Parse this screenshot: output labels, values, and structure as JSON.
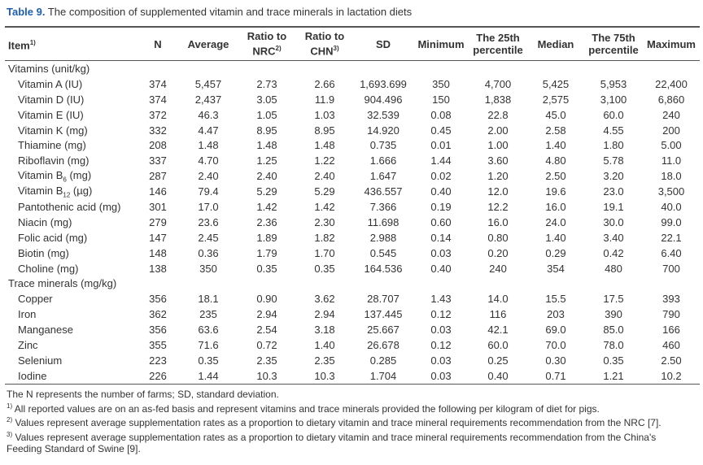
{
  "title": {
    "label": "Table 9.",
    "text": " The composition of supplemented vitamin and trace minerals in lactation diets"
  },
  "table": {
    "header": [
      {
        "text": "Item",
        "sup": "1)"
      },
      {
        "text": "N"
      },
      {
        "text": "Average"
      },
      {
        "text": "Ratio to NRC",
        "sup": "2)"
      },
      {
        "text": "Ratio to CHN",
        "sup": "3)"
      },
      {
        "text": "SD"
      },
      {
        "text": "Minimum"
      },
      {
        "text": "The 25th percentile"
      },
      {
        "text": "Median"
      },
      {
        "text": "The 75th percentile"
      },
      {
        "text": "Maximum"
      }
    ],
    "sections": [
      {
        "title": "Vitamins (unit/kg)",
        "rows": [
          {
            "item": "Vitamin A (IU)",
            "values": [
              "374",
              "5,457",
              "2.73",
              "2.66",
              "1,693.699",
              "350",
              "4,700",
              "5,425",
              "5,953",
              "22,400"
            ]
          },
          {
            "item": "Vitamin D (IU)",
            "values": [
              "374",
              "2,437",
              "3.05",
              "11.9",
              "904.496",
              "150",
              "1,838",
              "2,575",
              "3,100",
              "6,860"
            ]
          },
          {
            "item": "Vitamin E (IU)",
            "values": [
              "372",
              "46.3",
              "1.05",
              "1.03",
              "32.539",
              "0.08",
              "22.8",
              "45.0",
              "60.0",
              "240"
            ]
          },
          {
            "item": "Vitamin K (mg)",
            "values": [
              "332",
              "4.47",
              "8.95",
              "8.95",
              "14.920",
              "0.45",
              "2.00",
              "2.58",
              "4.55",
              "200"
            ]
          },
          {
            "item": "Thiamine (mg)",
            "values": [
              "208",
              "1.48",
              "1.48",
              "1.48",
              "0.735",
              "0.01",
              "1.00",
              "1.40",
              "1.80",
              "5.00"
            ]
          },
          {
            "item": "Riboflavin (mg)",
            "values": [
              "337",
              "4.70",
              "1.25",
              "1.22",
              "1.666",
              "1.44",
              "3.60",
              "4.80",
              "5.78",
              "11.0"
            ]
          },
          {
            "item": {
              "pre": "Vitamin B",
              "sub": "6",
              "post": " (mg)"
            },
            "values": [
              "287",
              "2.40",
              "2.40",
              "2.40",
              "1.647",
              "0.02",
              "1.20",
              "2.50",
              "3.20",
              "18.0"
            ]
          },
          {
            "item": {
              "pre": "Vitamin B",
              "sub": "12",
              "post": " (µg)"
            },
            "values": [
              "146",
              "79.4",
              "5.29",
              "5.29",
              "436.557",
              "0.40",
              "12.0",
              "19.6",
              "23.0",
              "3,500"
            ]
          },
          {
            "item": "Pantothenic acid (mg)",
            "values": [
              "301",
              "17.0",
              "1.42",
              "1.42",
              "7.366",
              "0.19",
              "12.2",
              "16.0",
              "19.1",
              "40.0"
            ]
          },
          {
            "item": "Niacin (mg)",
            "values": [
              "279",
              "23.6",
              "2.36",
              "2.30",
              "11.698",
              "0.60",
              "16.0",
              "24.0",
              "30.0",
              "99.0"
            ]
          },
          {
            "item": "Folic acid (mg)",
            "values": [
              "147",
              "2.45",
              "1.89",
              "1.82",
              "2.988",
              "0.14",
              "0.80",
              "1.40",
              "3.40",
              "22.1"
            ]
          },
          {
            "item": "Biotin (mg)",
            "values": [
              "148",
              "0.36",
              "1.79",
              "1.70",
              "0.545",
              "0.03",
              "0.20",
              "0.29",
              "0.42",
              "6.40"
            ]
          },
          {
            "item": "Choline (mg)",
            "values": [
              "138",
              "350",
              "0.35",
              "0.35",
              "164.536",
              "0.40",
              "240",
              "354",
              "480",
              "700"
            ]
          }
        ]
      },
      {
        "title": "Trace minerals (mg/kg)",
        "rows": [
          {
            "item": "Copper",
            "values": [
              "356",
              "18.1",
              "0.90",
              "3.62",
              "28.707",
              "1.43",
              "14.0",
              "15.5",
              "17.5",
              "393"
            ]
          },
          {
            "item": "Iron",
            "values": [
              "362",
              "235",
              "2.94",
              "2.94",
              "137.445",
              "0.12",
              "116",
              "203",
              "390",
              "790"
            ]
          },
          {
            "item": "Manganese",
            "values": [
              "356",
              "63.6",
              "2.54",
              "3.18",
              "25.667",
              "0.03",
              "42.1",
              "69.0",
              "85.0",
              "166"
            ]
          },
          {
            "item": "Zinc",
            "values": [
              "355",
              "71.6",
              "0.72",
              "1.40",
              "26.678",
              "0.12",
              "60.0",
              "70.0",
              "78.0",
              "460"
            ]
          },
          {
            "item": "Selenium",
            "values": [
              "223",
              "0.35",
              "2.35",
              "2.35",
              "0.285",
              "0.03",
              "0.25",
              "0.30",
              "0.35",
              "2.50"
            ]
          },
          {
            "item": "Iodine",
            "values": [
              "226",
              "1.44",
              "10.3",
              "10.3",
              "1.704",
              "0.03",
              "0.40",
              "0.71",
              "1.21",
              "10.2"
            ]
          }
        ]
      }
    ]
  },
  "notes": [
    {
      "text": "The N represents the number of farms; SD, standard deviation."
    },
    {
      "sup": "1)",
      "text": " All reported values are on an as-fed basis and represent vitamins and trace minerals provided the following per kilogram of diet for pigs."
    },
    {
      "sup": "2)",
      "text": " Values represent average supplementation rates as a proportion to dietary vitamin and trace mineral requirements recommendation from the NRC [7]."
    },
    {
      "sup": "3)",
      "text": " Values represent average supplementation rates as a proportion to dietary vitamin and trace mineral requirements recommendation from the China's Feeding Standard of Swine [9]."
    }
  ]
}
